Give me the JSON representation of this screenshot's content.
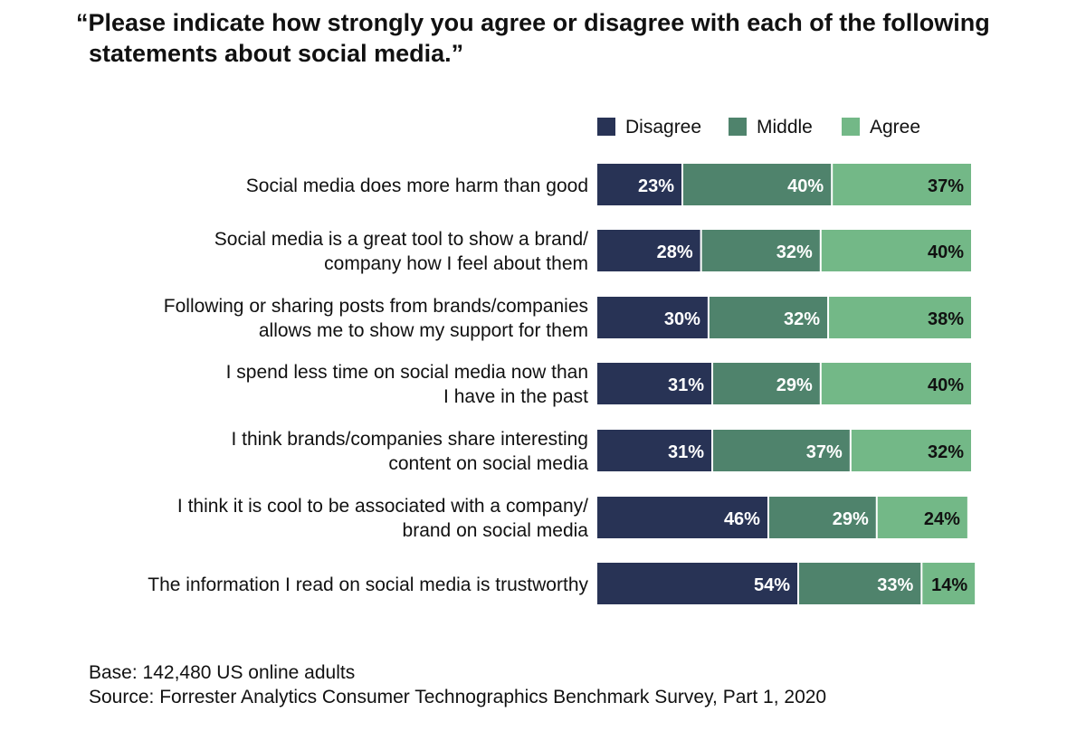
{
  "title": {
    "line1": "“Please indicate how strongly you agree or disagree with each of the following",
    "line2": "statements about social media.”"
  },
  "colors": {
    "disagree": "#283355",
    "middle": "#4f836c",
    "agree": "#73b887"
  },
  "chart_data": {
    "type": "bar",
    "orientation": "horizontal",
    "stacked": true,
    "categories": [
      [
        "Social media does more harm than good"
      ],
      [
        "Social media is a great tool to show a brand/",
        "company how I feel about them"
      ],
      [
        "Following or sharing posts from brands/companies",
        "allows me to show my support for them"
      ],
      [
        "I spend less time on social media now than",
        "I have in the past"
      ],
      [
        "I think brands/companies share interesting",
        "content on social media"
      ],
      [
        "I think it is cool to be associated with a company/",
        "brand on social media"
      ],
      [
        "The information I read on social media is trustworthy"
      ]
    ],
    "series": [
      {
        "name": "Disagree",
        "values": [
          23,
          28,
          30,
          31,
          31,
          46,
          54
        ],
        "labels": [
          "23%",
          "28%",
          "30%",
          "31%",
          "31%",
          "46%",
          "54%"
        ]
      },
      {
        "name": "Middle",
        "values": [
          40,
          32,
          32,
          29,
          37,
          29,
          33
        ],
        "labels": [
          "40%",
          "32%",
          "32%",
          "29%",
          "37%",
          "29%",
          "33%"
        ]
      },
      {
        "name": "Agree",
        "values": [
          37,
          40,
          38,
          40,
          32,
          24,
          14
        ],
        "labels": [
          "37%",
          "40%",
          "38%",
          "40%",
          "32%",
          "24%",
          "14%"
        ]
      }
    ],
    "legend_position": "top-right",
    "grid": false
  },
  "footer": {
    "base": "Base: 142,480 US online adults",
    "source": "Source: Forrester Analytics Consumer Technographics Benchmark Survey, Part 1, 2020"
  }
}
